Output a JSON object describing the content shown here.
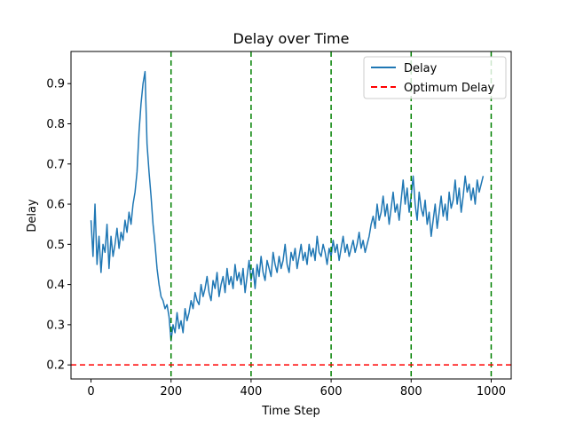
{
  "chart_data": {
    "type": "line",
    "title": "Delay over Time",
    "xlabel": "Time Step",
    "ylabel": "Delay",
    "xlim": [
      -50,
      1050
    ],
    "ylim": [
      0.165,
      0.98
    ],
    "x_ticks": [
      0,
      200,
      400,
      600,
      800,
      1000
    ],
    "y_ticks": [
      0.2,
      0.3,
      0.4,
      0.5,
      0.6,
      0.7,
      0.8,
      0.9
    ],
    "series": [
      {
        "name": "Delay",
        "color": "#1f77b4",
        "style": "solid",
        "x_start": 0,
        "x_step": 5,
        "values": [
          0.56,
          0.47,
          0.6,
          0.45,
          0.52,
          0.43,
          0.5,
          0.48,
          0.55,
          0.44,
          0.52,
          0.47,
          0.5,
          0.54,
          0.49,
          0.53,
          0.51,
          0.56,
          0.53,
          0.58,
          0.55,
          0.6,
          0.63,
          0.68,
          0.78,
          0.85,
          0.9,
          0.93,
          0.75,
          0.68,
          0.62,
          0.55,
          0.5,
          0.44,
          0.4,
          0.37,
          0.36,
          0.34,
          0.35,
          0.32,
          0.26,
          0.3,
          0.28,
          0.33,
          0.29,
          0.31,
          0.28,
          0.34,
          0.31,
          0.33,
          0.36,
          0.34,
          0.38,
          0.36,
          0.35,
          0.4,
          0.37,
          0.39,
          0.42,
          0.38,
          0.36,
          0.41,
          0.39,
          0.43,
          0.37,
          0.4,
          0.42,
          0.38,
          0.44,
          0.4,
          0.42,
          0.39,
          0.45,
          0.41,
          0.43,
          0.4,
          0.44,
          0.38,
          0.42,
          0.46,
          0.41,
          0.44,
          0.39,
          0.45,
          0.42,
          0.47,
          0.43,
          0.41,
          0.46,
          0.44,
          0.42,
          0.48,
          0.45,
          0.43,
          0.47,
          0.44,
          0.46,
          0.5,
          0.45,
          0.43,
          0.48,
          0.46,
          0.49,
          0.44,
          0.47,
          0.5,
          0.46,
          0.48,
          0.45,
          0.5,
          0.47,
          0.49,
          0.46,
          0.52,
          0.48,
          0.47,
          0.5,
          0.48,
          0.45,
          0.49,
          0.47,
          0.51,
          0.48,
          0.5,
          0.46,
          0.49,
          0.52,
          0.48,
          0.5,
          0.47,
          0.49,
          0.51,
          0.48,
          0.5,
          0.53,
          0.49,
          0.51,
          0.48,
          0.5,
          0.52,
          0.55,
          0.57,
          0.54,
          0.6,
          0.56,
          0.58,
          0.62,
          0.57,
          0.6,
          0.55,
          0.59,
          0.63,
          0.58,
          0.6,
          0.56,
          0.61,
          0.66,
          0.6,
          0.64,
          0.58,
          0.62,
          0.67,
          0.6,
          0.56,
          0.63,
          0.59,
          0.57,
          0.61,
          0.55,
          0.58,
          0.52,
          0.56,
          0.6,
          0.54,
          0.58,
          0.62,
          0.57,
          0.6,
          0.56,
          0.63,
          0.59,
          0.61,
          0.66,
          0.6,
          0.64,
          0.58,
          0.62,
          0.67,
          0.63,
          0.65,
          0.61,
          0.64,
          0.6,
          0.66,
          0.63,
          0.65,
          0.67
        ]
      },
      {
        "name": "Optimum Delay",
        "color": "#ff0000",
        "style": "dashed",
        "constant_y": 0.2
      }
    ],
    "vertical_markers": {
      "x": [
        200,
        400,
        600,
        800,
        1000
      ],
      "color": "#008000",
      "style": "dashed"
    },
    "legend": {
      "position": "top-right",
      "entries": [
        "Delay",
        "Optimum Delay"
      ]
    },
    "grid": false
  }
}
